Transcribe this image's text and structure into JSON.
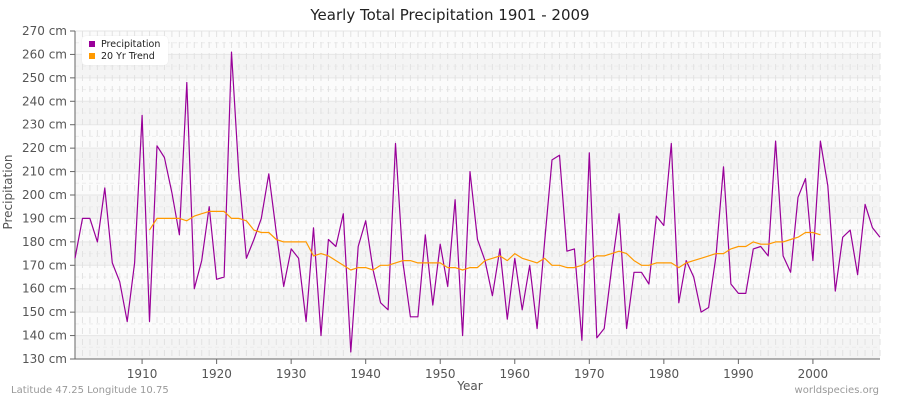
{
  "chart_data": {
    "type": "line",
    "title": "Yearly Total Precipitation 1901 - 2009",
    "xlabel": "Year",
    "ylabel": "Precipitation",
    "ylim": [
      130,
      270
    ],
    "xlim": [
      1901,
      2009
    ],
    "y_unit": "cm",
    "y_ticks": [
      130,
      140,
      150,
      160,
      170,
      180,
      190,
      200,
      210,
      220,
      230,
      240,
      250,
      260,
      270
    ],
    "y_tick_labels": [
      "130 cm",
      "140 cm",
      "150 cm",
      "160 cm",
      "170 cm",
      "180 cm",
      "190 cm",
      "200 cm",
      "210 cm",
      "220 cm",
      "230 cm",
      "240 cm",
      "250 cm",
      "260 cm",
      "270 cm"
    ],
    "x_ticks": [
      1910,
      1920,
      1930,
      1940,
      1950,
      1960,
      1970,
      1980,
      1990,
      2000
    ],
    "grid": true,
    "legend_position": "top-left",
    "series": [
      {
        "name": "Precipitation",
        "color": "#990099",
        "x_start": 1901,
        "values": [
          173,
          190,
          190,
          180,
          203,
          171,
          163,
          146,
          171,
          234,
          146,
          221,
          216,
          201,
          183,
          248,
          160,
          172,
          195,
          164,
          165,
          261,
          208,
          173,
          181,
          190,
          209,
          184,
          161,
          177,
          173,
          146,
          186,
          140,
          181,
          178,
          192,
          133,
          178,
          189,
          168,
          154,
          151,
          222,
          171,
          148,
          148,
          183,
          153,
          179,
          161,
          198,
          140,
          210,
          181,
          172,
          157,
          177,
          147,
          173,
          151,
          170,
          143,
          180,
          215,
          217,
          176,
          177,
          138,
          218,
          139,
          143,
          169,
          192,
          143,
          167,
          167,
          162,
          191,
          187,
          222,
          154,
          172,
          165,
          150,
          152,
          174,
          212,
          162,
          158,
          158,
          177,
          178,
          174,
          223,
          174,
          167,
          199,
          207,
          172,
          223,
          204,
          159,
          182,
          185,
          166,
          196,
          186,
          182
        ]
      },
      {
        "name": "20 Yr Trend",
        "color": "#ff9900",
        "x_start": 1911,
        "values": [
          185,
          190,
          190,
          190,
          190,
          189,
          191,
          192,
          193,
          193,
          193,
          190,
          190,
          189,
          185,
          184,
          184,
          181,
          180,
          180,
          180,
          180,
          174,
          175,
          174,
          172,
          170,
          168,
          169,
          169,
          168,
          170,
          170,
          171,
          172,
          172,
          171,
          171,
          171,
          171,
          169,
          169,
          168,
          169,
          169,
          172,
          173,
          174,
          172,
          175,
          173,
          172,
          171,
          173,
          170,
          170,
          169,
          169,
          170,
          172,
          174,
          174,
          175,
          176,
          175,
          172,
          170,
          170,
          171,
          171,
          171,
          169,
          171,
          172,
          173,
          174,
          175,
          175,
          177,
          178,
          178,
          180,
          179,
          179,
          180,
          180,
          181,
          182,
          184,
          184,
          183
        ]
      }
    ]
  },
  "legend": {
    "items": [
      {
        "label": "Precipitation",
        "color": "#990099"
      },
      {
        "label": "20 Yr Trend",
        "color": "#ff9900"
      }
    ]
  },
  "footer": {
    "location": "Latitude 47.25 Longitude 10.75",
    "source": "worldspecies.org"
  }
}
